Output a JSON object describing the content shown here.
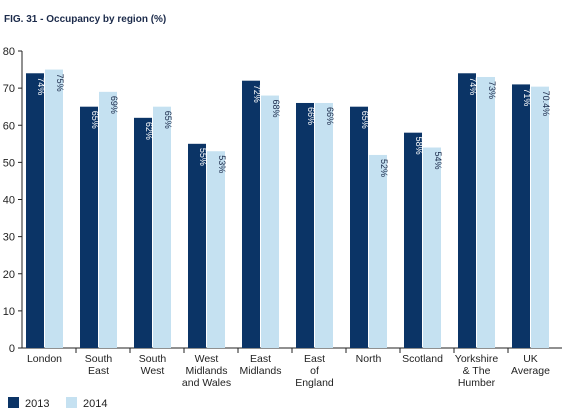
{
  "chart_data": {
    "type": "bar",
    "title": "FIG. 31 - Occupancy by region (%)",
    "xlabel": "",
    "ylabel": "",
    "ylim": [
      0,
      80
    ],
    "yticks": [
      0,
      10,
      20,
      30,
      40,
      50,
      60,
      70,
      80
    ],
    "grid": false,
    "legend_position": "bottom-left",
    "categories": [
      [
        "London"
      ],
      [
        "South",
        "East"
      ],
      [
        "South",
        "West"
      ],
      [
        "West",
        "Midlands",
        "and Wales"
      ],
      [
        "East",
        "Midlands"
      ],
      [
        "East",
        "of",
        "England"
      ],
      [
        "North"
      ],
      [
        "Scotland"
      ],
      [
        "Yorkshire",
        "& The",
        "Humber"
      ],
      [
        "UK",
        "Average"
      ]
    ],
    "series": [
      {
        "name": "2013",
        "color": "#0b3466",
        "label_color": "#ffffff",
        "values": [
          74,
          65,
          62,
          55,
          72,
          66,
          65,
          58,
          74,
          71
        ],
        "labels": [
          "74%",
          "65%",
          "62%",
          "55%",
          "72%",
          "66%",
          "65%",
          "58%",
          "74%",
          "71%"
        ]
      },
      {
        "name": "2014",
        "color": "#c5e1f1",
        "label_color": "#1b2a4a",
        "values": [
          75,
          69,
          65,
          53,
          68,
          66,
          52,
          54,
          73,
          70.4
        ],
        "labels": [
          "75%",
          "69%",
          "65%",
          "53%",
          "68%",
          "66%",
          "52%",
          "54%",
          "73%",
          "70.4%"
        ]
      }
    ]
  }
}
